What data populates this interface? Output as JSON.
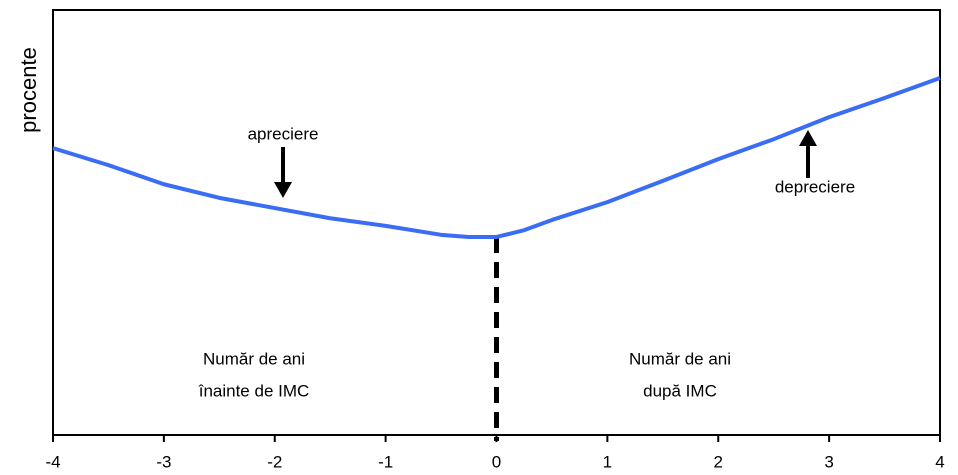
{
  "chart_data": {
    "type": "line",
    "y_label": "procente",
    "x": [
      -4,
      -3.5,
      -3,
      -2.5,
      -2,
      -1.5,
      -1,
      -0.5,
      -0.25,
      0,
      0.25,
      0.5,
      1,
      1.5,
      2,
      2.5,
      3,
      3.5,
      4
    ],
    "series": [
      {
        "color": "#3a6cf4",
        "values": [
          67.5,
          63.5,
          59,
          55.8,
          53.4,
          51,
          49.2,
          47.1,
          46.6,
          46.6,
          48.2,
          50.6,
          54.8,
          59.8,
          64.9,
          69.6,
          74.8,
          79.3,
          84
        ]
      }
    ],
    "xlim": [
      -4,
      4
    ],
    "xticks": [
      -4,
      -3,
      -2,
      -1,
      0,
      1,
      2,
      3,
      4
    ],
    "ylim": [
      0,
      100
    ],
    "annotations": [
      "apreciere",
      "depreciere"
    ],
    "region_labels": [
      [
        "Număr de ani",
        "înainte de IMC"
      ],
      [
        "Număr de ani",
        "după IMC"
      ]
    ]
  }
}
